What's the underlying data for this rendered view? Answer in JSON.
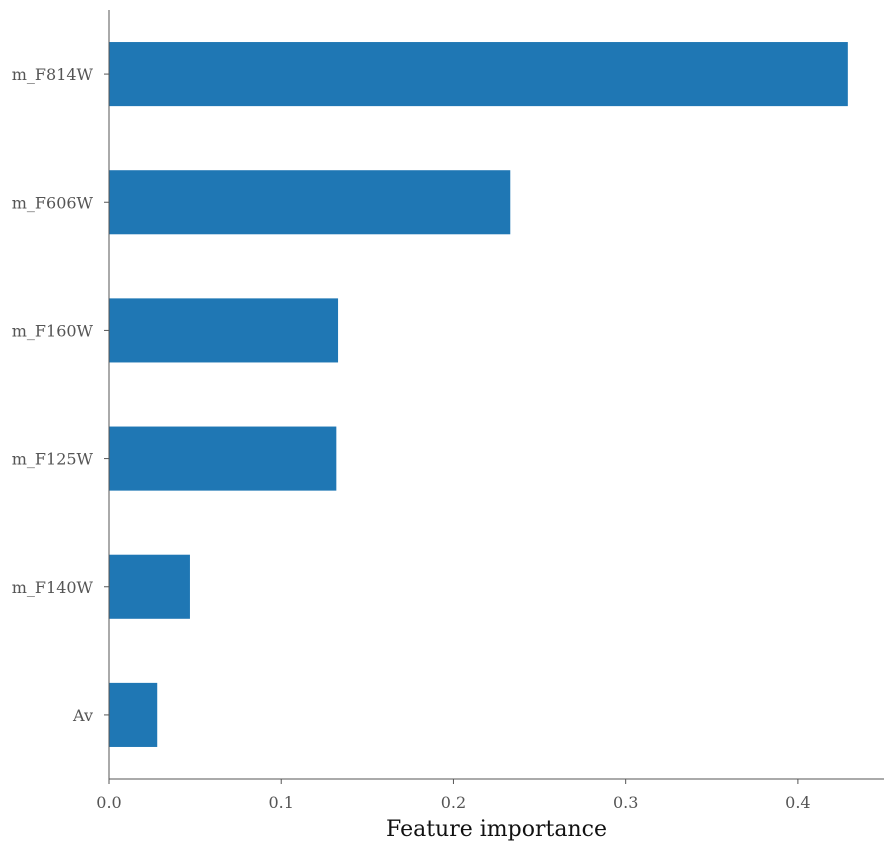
{
  "chart_data": {
    "type": "bar",
    "orientation": "horizontal",
    "categories": [
      "m_F814W",
      "m_F606W",
      "m_F160W",
      "m_F125W",
      "m_F140W",
      "Av"
    ],
    "values": [
      0.429,
      0.233,
      0.133,
      0.132,
      0.047,
      0.028
    ],
    "bar_color": "#1f77b4",
    "xlabel": "Feature importance",
    "ylabel": "",
    "title": "",
    "xlim": [
      0.0,
      0.45
    ],
    "xticks": [
      0.0,
      0.1,
      0.2,
      0.3,
      0.4
    ],
    "xtick_labels": [
      "0.0",
      "0.1",
      "0.2",
      "0.3",
      "0.4"
    ],
    "grid": false,
    "legend": "none"
  }
}
